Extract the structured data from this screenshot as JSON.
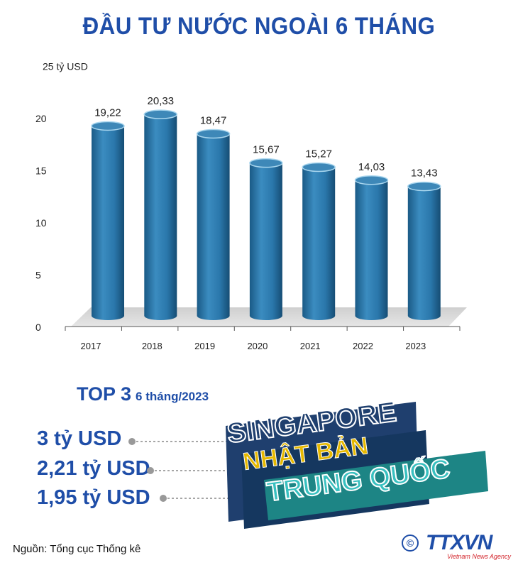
{
  "title": "ĐẦU TƯ NƯỚC NGOÀI 6 THÁNG",
  "chart_data": {
    "type": "bar",
    "unit_label": "25 tỷ USD",
    "categories": [
      "2017",
      "2018",
      "2019",
      "2020",
      "2021",
      "2022",
      "2023"
    ],
    "values": [
      19.22,
      20.33,
      18.47,
      15.67,
      15.27,
      14.03,
      13.43
    ],
    "value_labels": [
      "19,22",
      "20,33",
      "18,47",
      "15,67",
      "15,27",
      "14,03",
      "13,43"
    ],
    "y_ticks": [
      "0",
      "5",
      "10",
      "15",
      "20"
    ],
    "ylim": [
      0,
      25
    ],
    "bar_color": "#2a77ab"
  },
  "top3": {
    "heading": "TOP 3",
    "period": "6 tháng/2023",
    "items": [
      {
        "country": "SINGAPORE",
        "value": "3 tỷ USD",
        "color": "#1f3f6e"
      },
      {
        "country": "NHẬT BẢN",
        "value": "2,21 tỷ USD",
        "color": "#e6b800"
      },
      {
        "country": "TRUNG QUỐC",
        "value": "1,95 tỷ USD",
        "color": "#26a3a3"
      }
    ]
  },
  "source": "Nguồn: Tổng cục Thống kê",
  "logo": {
    "symbol": "©",
    "name": "TTXVN",
    "subtitle": "Vietnam News Agency"
  }
}
